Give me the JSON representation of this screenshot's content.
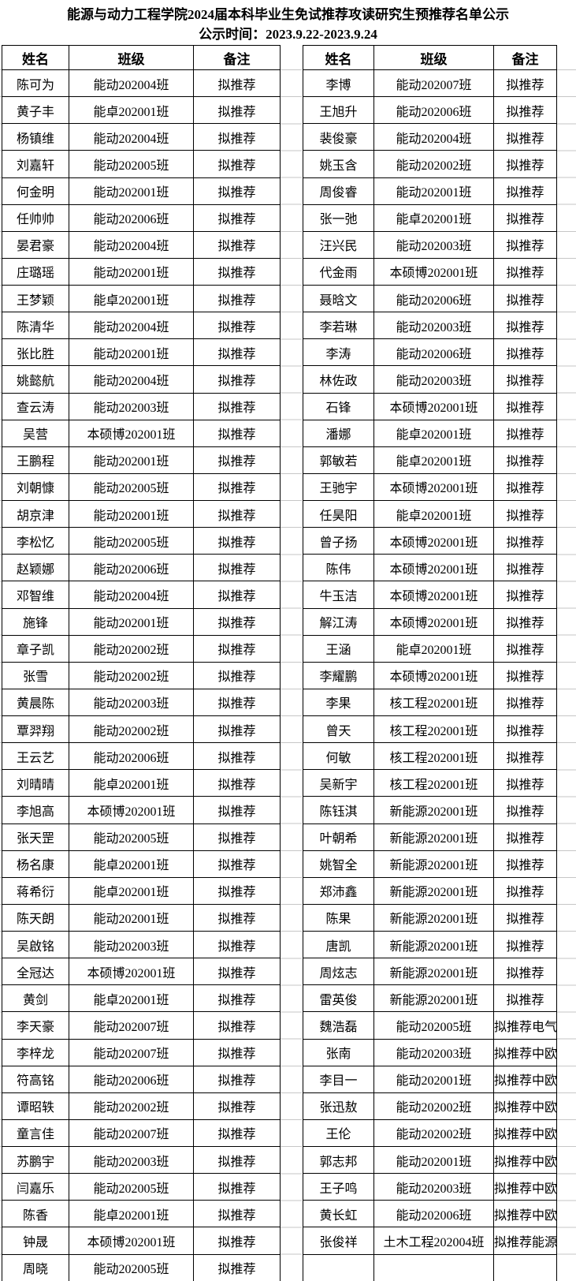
{
  "title": "能源与动力工程学院2024届本科毕业生免试推荐攻读研究生预推荐名单公示",
  "publish_time": "公示时间：2023.9.22-2023.9.24",
  "columns": {
    "name": "姓名",
    "class": "班级",
    "note": "备注"
  },
  "colors": {
    "border": "#000000",
    "gridline": "#c6c6c6",
    "background": "#ffffff",
    "text": "#000000"
  },
  "left_table": {
    "rows": [
      {
        "name": "陈可为",
        "class": "能动202004班",
        "note": "拟推荐"
      },
      {
        "name": "黄子丰",
        "class": "能卓202001班",
        "note": "拟推荐"
      },
      {
        "name": "杨镇维",
        "class": "能动202004班",
        "note": "拟推荐"
      },
      {
        "name": "刘嘉轩",
        "class": "能动202005班",
        "note": "拟推荐"
      },
      {
        "name": "何金明",
        "class": "能动202001班",
        "note": "拟推荐"
      },
      {
        "name": "任帅帅",
        "class": "能动202006班",
        "note": "拟推荐"
      },
      {
        "name": "晏君豪",
        "class": "能动202004班",
        "note": "拟推荐"
      },
      {
        "name": "庄璐瑶",
        "class": "能动202001班",
        "note": "拟推荐"
      },
      {
        "name": "王梦颖",
        "class": "能卓202001班",
        "note": "拟推荐"
      },
      {
        "name": "陈清华",
        "class": "能动202004班",
        "note": "拟推荐"
      },
      {
        "name": "张比胜",
        "class": "能动202001班",
        "note": "拟推荐"
      },
      {
        "name": "姚懿航",
        "class": "能动202004班",
        "note": "拟推荐"
      },
      {
        "name": "查云涛",
        "class": "能动202003班",
        "note": "拟推荐"
      },
      {
        "name": "吴营",
        "class": "本硕博202001班",
        "note": "拟推荐"
      },
      {
        "name": "王鹏程",
        "class": "能动202001班",
        "note": "拟推荐"
      },
      {
        "name": "刘朝慷",
        "class": "能动202005班",
        "note": "拟推荐"
      },
      {
        "name": "胡京津",
        "class": "能动202001班",
        "note": "拟推荐"
      },
      {
        "name": "李松忆",
        "class": "能动202005班",
        "note": "拟推荐"
      },
      {
        "name": "赵颖娜",
        "class": "能动202006班",
        "note": "拟推荐"
      },
      {
        "name": "邓智维",
        "class": "能动202004班",
        "note": "拟推荐"
      },
      {
        "name": "施锋",
        "class": "能动202001班",
        "note": "拟推荐"
      },
      {
        "name": "章子凯",
        "class": "能动202002班",
        "note": "拟推荐"
      },
      {
        "name": "张雪",
        "class": "能动202002班",
        "note": "拟推荐"
      },
      {
        "name": "黄晨陈",
        "class": "能动202003班",
        "note": "拟推荐"
      },
      {
        "name": "覃羿翔",
        "class": "能动202002班",
        "note": "拟推荐"
      },
      {
        "name": "王云艺",
        "class": "能动202006班",
        "note": "拟推荐"
      },
      {
        "name": "刘晴晴",
        "class": "能卓202001班",
        "note": "拟推荐"
      },
      {
        "name": "李旭高",
        "class": "本硕博202001班",
        "note": "拟推荐"
      },
      {
        "name": "张天罡",
        "class": "能动202005班",
        "note": "拟推荐"
      },
      {
        "name": "杨名康",
        "class": "能卓202001班",
        "note": "拟推荐"
      },
      {
        "name": "蒋希衍",
        "class": "能卓202001班",
        "note": "拟推荐"
      },
      {
        "name": "陈天朗",
        "class": "能动202001班",
        "note": "拟推荐"
      },
      {
        "name": "吴啟铭",
        "class": "能动202003班",
        "note": "拟推荐"
      },
      {
        "name": "全冠达",
        "class": "本硕博202001班",
        "note": "拟推荐"
      },
      {
        "name": "黄剑",
        "class": "能卓202001班",
        "note": "拟推荐"
      },
      {
        "name": "李天豪",
        "class": "能动202007班",
        "note": "拟推荐"
      },
      {
        "name": "李梓龙",
        "class": "能动202007班",
        "note": "拟推荐"
      },
      {
        "name": "符高铭",
        "class": "能动202006班",
        "note": "拟推荐"
      },
      {
        "name": "谭昭轶",
        "class": "能动202002班",
        "note": "拟推荐"
      },
      {
        "name": "童言佳",
        "class": "能动202007班",
        "note": "拟推荐"
      },
      {
        "name": "苏鹏宇",
        "class": "能动202003班",
        "note": "拟推荐"
      },
      {
        "name": "闫嘉乐",
        "class": "能动202005班",
        "note": "拟推荐"
      },
      {
        "name": "陈香",
        "class": "能卓202001班",
        "note": "拟推荐"
      },
      {
        "name": "钟晟",
        "class": "本硕博202001班",
        "note": "拟推荐"
      },
      {
        "name": "周晓",
        "class": "能动202005班",
        "note": "拟推荐"
      }
    ]
  },
  "right_table": {
    "rows": [
      {
        "name": "李博",
        "class": "能动202007班",
        "note": "拟推荐"
      },
      {
        "name": "王旭升",
        "class": "能动202006班",
        "note": "拟推荐"
      },
      {
        "name": "裴俊豪",
        "class": "能动202004班",
        "note": "拟推荐"
      },
      {
        "name": "姚玉含",
        "class": "能动202002班",
        "note": "拟推荐"
      },
      {
        "name": "周俊睿",
        "class": "能动202001班",
        "note": "拟推荐"
      },
      {
        "name": "张一弛",
        "class": "能卓202001班",
        "note": "拟推荐"
      },
      {
        "name": "汪兴民",
        "class": "能动202003班",
        "note": "拟推荐"
      },
      {
        "name": "代金雨",
        "class": "本硕博202001班",
        "note": "拟推荐"
      },
      {
        "name": "聂晗文",
        "class": "能动202006班",
        "note": "拟推荐"
      },
      {
        "name": "李若琳",
        "class": "能动202003班",
        "note": "拟推荐"
      },
      {
        "name": "李涛",
        "class": "能动202006班",
        "note": "拟推荐"
      },
      {
        "name": "林佐政",
        "class": "能动202003班",
        "note": "拟推荐"
      },
      {
        "name": "石锋",
        "class": "本硕博202001班",
        "note": "拟推荐"
      },
      {
        "name": "潘娜",
        "class": "能卓202001班",
        "note": "拟推荐"
      },
      {
        "name": "郭敏若",
        "class": "能卓202001班",
        "note": "拟推荐"
      },
      {
        "name": "王驰宇",
        "class": "本硕博202001班",
        "note": "拟推荐"
      },
      {
        "name": "任昊阳",
        "class": "能卓202001班",
        "note": "拟推荐"
      },
      {
        "name": "曾子扬",
        "class": "本硕博202001班",
        "note": "拟推荐"
      },
      {
        "name": "陈伟",
        "class": "本硕博202001班",
        "note": "拟推荐"
      },
      {
        "name": "牛玉洁",
        "class": "本硕博202001班",
        "note": "拟推荐"
      },
      {
        "name": "解江涛",
        "class": "本硕博202001班",
        "note": "拟推荐"
      },
      {
        "name": "王涵",
        "class": "能卓202001班",
        "note": "拟推荐"
      },
      {
        "name": "李耀鹏",
        "class": "本硕博202001班",
        "note": "拟推荐"
      },
      {
        "name": "李果",
        "class": "核工程202001班",
        "note": "拟推荐"
      },
      {
        "name": "曾天",
        "class": "核工程202001班",
        "note": "拟推荐"
      },
      {
        "name": "何敏",
        "class": "核工程202001班",
        "note": "拟推荐"
      },
      {
        "name": "吴新宇",
        "class": "核工程202001班",
        "note": "拟推荐"
      },
      {
        "name": "陈钰淇",
        "class": "新能源202001班",
        "note": "拟推荐"
      },
      {
        "name": "叶朝希",
        "class": "新能源202001班",
        "note": "拟推荐"
      },
      {
        "name": "姚智全",
        "class": "新能源202001班",
        "note": "拟推荐"
      },
      {
        "name": "郑沛鑫",
        "class": "新能源202001班",
        "note": "拟推荐"
      },
      {
        "name": "陈果",
        "class": "新能源202001班",
        "note": "拟推荐"
      },
      {
        "name": "唐凯",
        "class": "新能源202001班",
        "note": "拟推荐"
      },
      {
        "name": "周炫志",
        "class": "新能源202001班",
        "note": "拟推荐"
      },
      {
        "name": "雷英俊",
        "class": "新能源202001班",
        "note": "拟推荐"
      },
      {
        "name": "魏浩磊",
        "class": "能动202005班",
        "note": "拟推荐电气"
      },
      {
        "name": "张南",
        "class": "能动202003班",
        "note": "拟推荐中欧"
      },
      {
        "name": "李目一",
        "class": "能动202001班",
        "note": "拟推荐中欧"
      },
      {
        "name": "张迅敖",
        "class": "能动202002班",
        "note": "拟推荐中欧"
      },
      {
        "name": "王伦",
        "class": "能动202002班",
        "note": "拟推荐中欧"
      },
      {
        "name": "郭志邦",
        "class": "能动202001班",
        "note": "拟推荐中欧"
      },
      {
        "name": "王子鸣",
        "class": "能动202003班",
        "note": "拟推荐中欧"
      },
      {
        "name": "黄长虹",
        "class": "能动202006班",
        "note": "拟推荐中欧"
      },
      {
        "name": "张俊祥",
        "class": "土木工程202004班",
        "note": "拟推荐能源"
      },
      {
        "name": "",
        "class": "",
        "note": ""
      }
    ]
  }
}
